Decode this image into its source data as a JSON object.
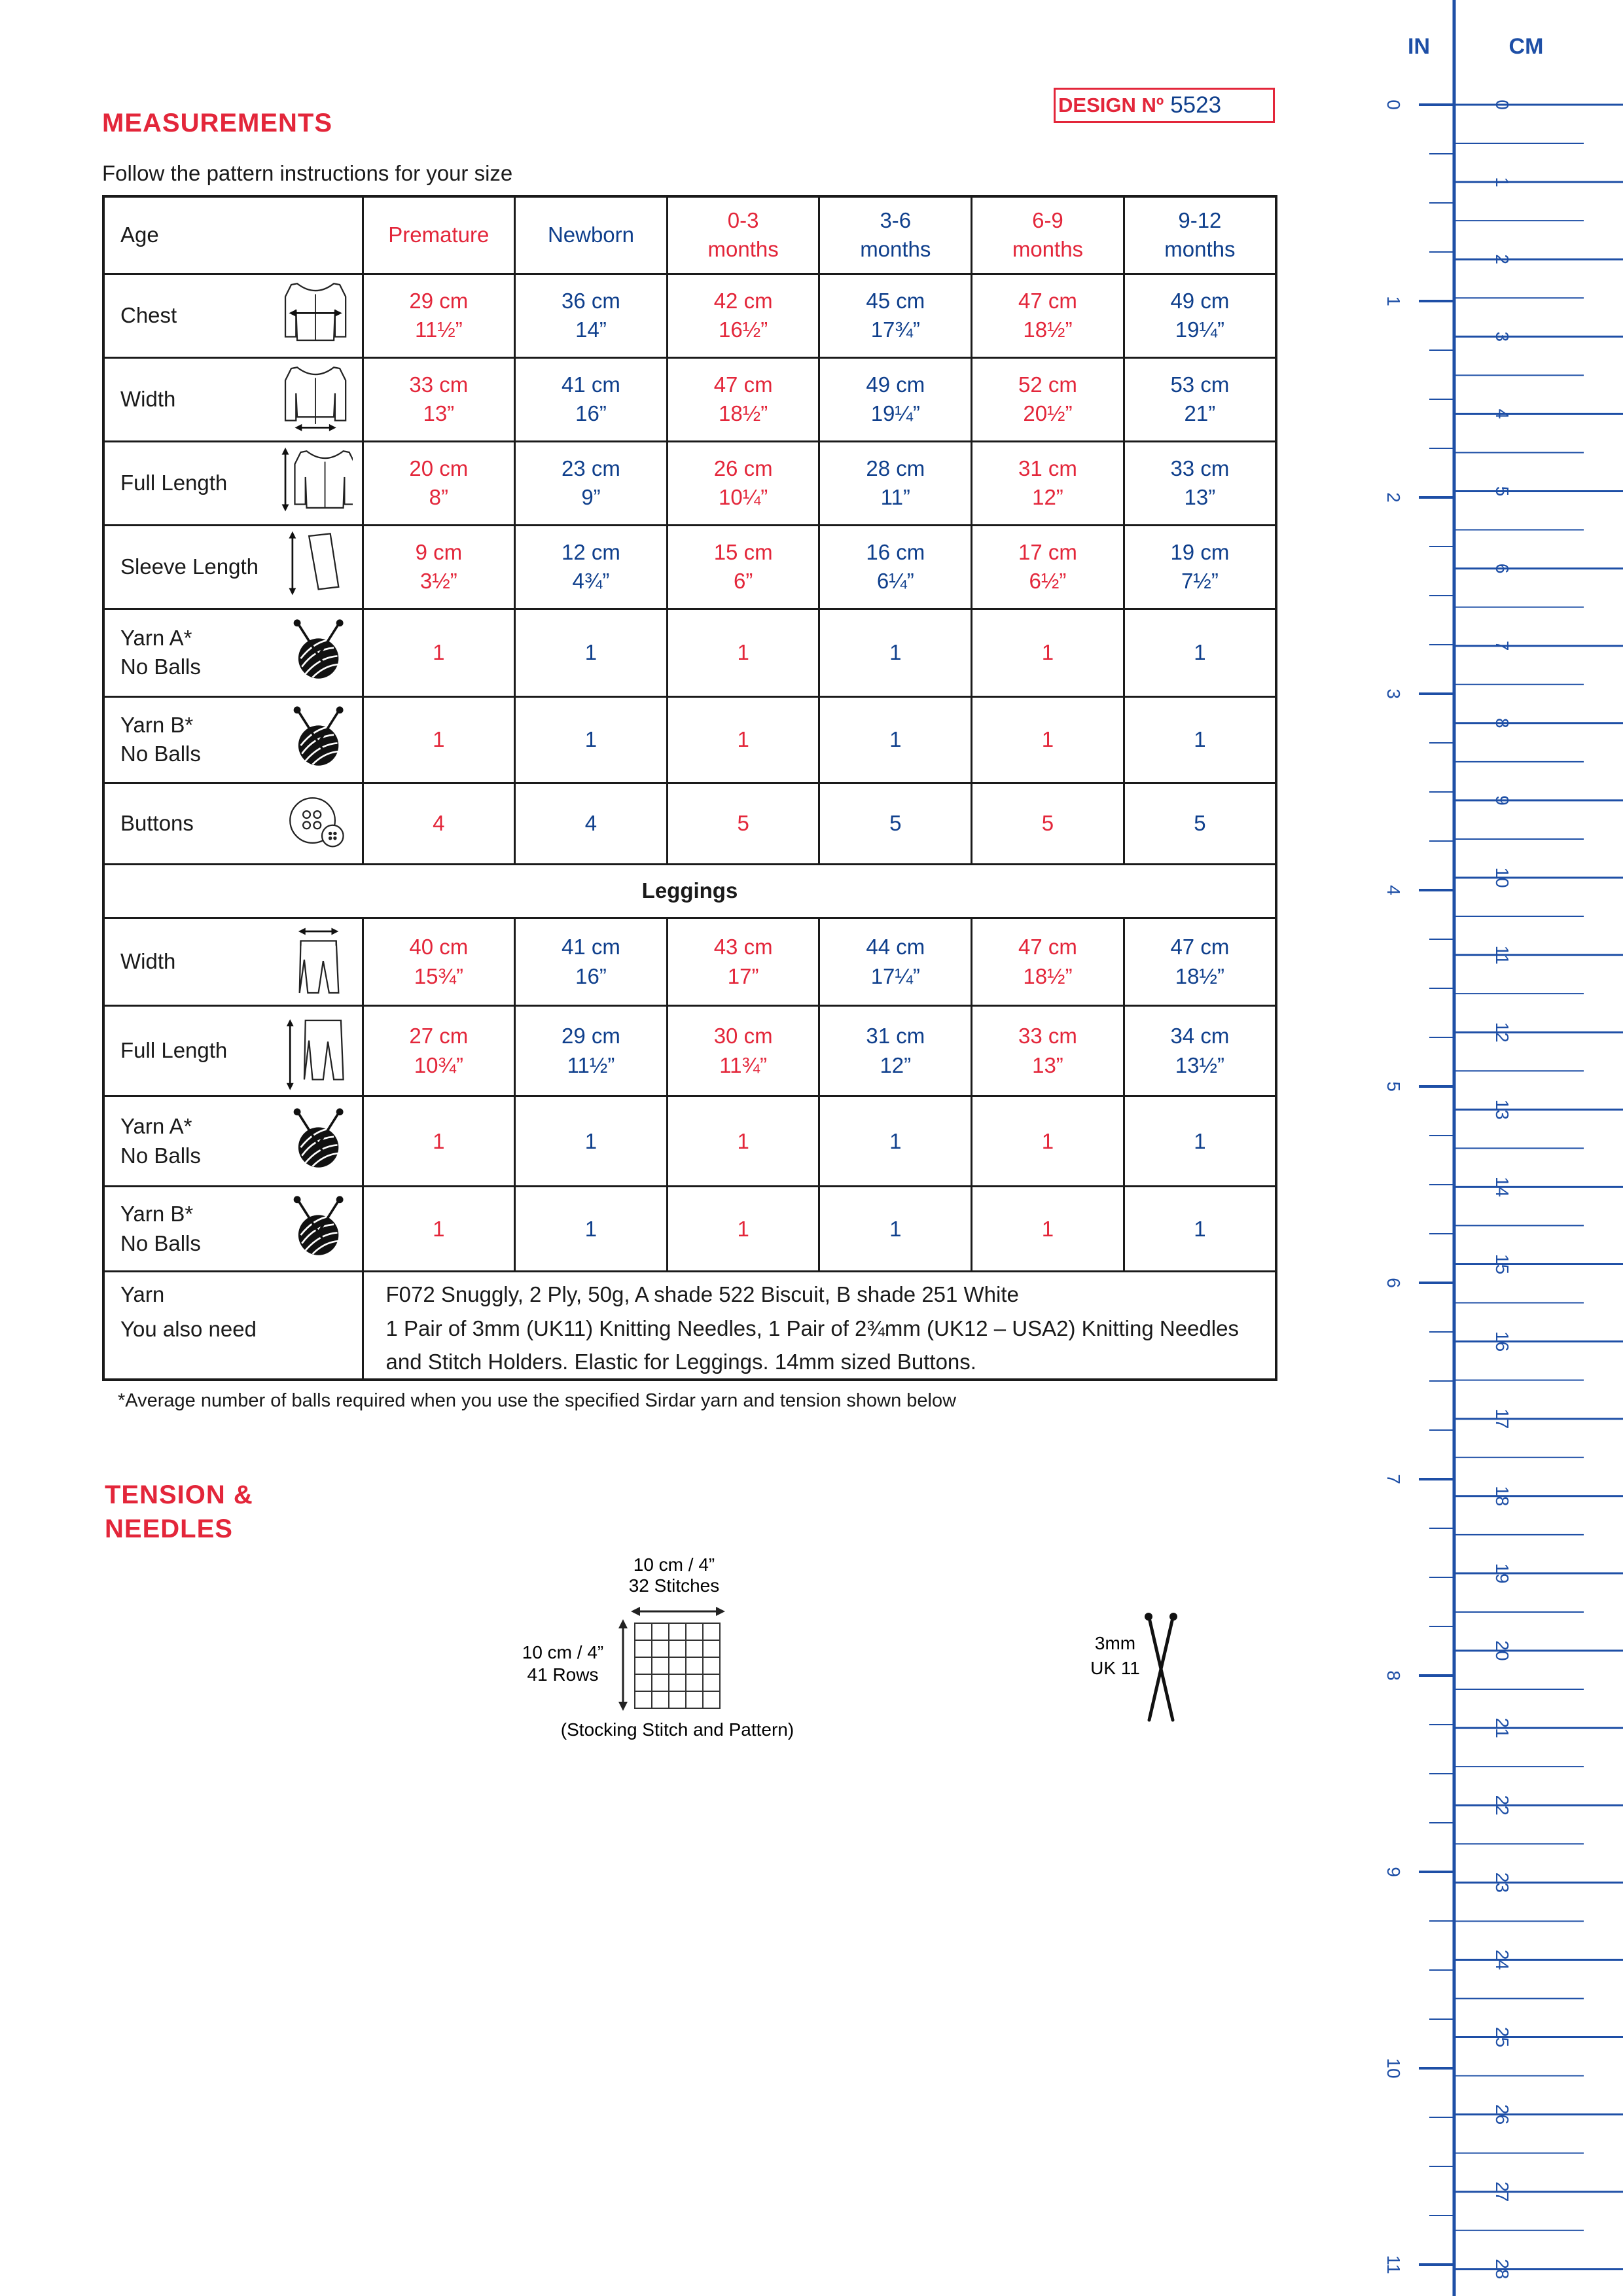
{
  "header": {
    "title": "MEASUREMENTS",
    "design_label": "DESIGN Nº",
    "design_number": "5523",
    "intro": "Follow the pattern instructions for your size"
  },
  "table": {
    "age_label": "Age",
    "sizes": [
      {
        "l1": "Premature",
        "l2": ""
      },
      {
        "l1": "Newborn",
        "l2": ""
      },
      {
        "l1": "0-3",
        "l2": "months"
      },
      {
        "l1": "3-6",
        "l2": "months"
      },
      {
        "l1": "6-9",
        "l2": "months"
      },
      {
        "l1": "9-12",
        "l2": "months"
      }
    ],
    "cardigan_rows": [
      {
        "label": "Chest",
        "label2": "",
        "icon": "cardigan-chest-icon",
        "cells": [
          [
            "29 cm",
            "11½”"
          ],
          [
            "36 cm",
            "14”"
          ],
          [
            "42 cm",
            "16½”"
          ],
          [
            "45 cm",
            "17¾”"
          ],
          [
            "47 cm",
            "18½”"
          ],
          [
            "49 cm",
            "19¼”"
          ]
        ]
      },
      {
        "label": "Width",
        "label2": "",
        "icon": "cardigan-width-icon",
        "cells": [
          [
            "33 cm",
            "13”"
          ],
          [
            "41 cm",
            "16”"
          ],
          [
            "47 cm",
            "18½”"
          ],
          [
            "49 cm",
            "19¼”"
          ],
          [
            "52 cm",
            "20½”"
          ],
          [
            "53 cm",
            "21”"
          ]
        ]
      },
      {
        "label": "Full Length",
        "label2": "",
        "icon": "cardigan-length-icon",
        "cells": [
          [
            "20 cm",
            "8”"
          ],
          [
            "23 cm",
            "9”"
          ],
          [
            "26 cm",
            "10¼”"
          ],
          [
            "28 cm",
            "11”"
          ],
          [
            "31 cm",
            "12”"
          ],
          [
            "33 cm",
            "13”"
          ]
        ]
      },
      {
        "label": "Sleeve Length",
        "label2": "",
        "icon": "sleeve-length-icon",
        "cells": [
          [
            "9 cm",
            "3½”"
          ],
          [
            "12 cm",
            "4¾”"
          ],
          [
            "15 cm",
            "6”"
          ],
          [
            "16 cm",
            "6¼”"
          ],
          [
            "17 cm",
            "6½”"
          ],
          [
            "19 cm",
            "7½”"
          ]
        ]
      },
      {
        "label": "Yarn A*",
        "label2": "No Balls",
        "icon": "yarn-ball-icon",
        "cells": [
          [
            "1",
            ""
          ],
          [
            "1",
            ""
          ],
          [
            "1",
            ""
          ],
          [
            "1",
            ""
          ],
          [
            "1",
            ""
          ],
          [
            "1",
            ""
          ]
        ]
      },
      {
        "label": "Yarn B*",
        "label2": "No Balls",
        "icon": "yarn-ball-icon",
        "cells": [
          [
            "1",
            ""
          ],
          [
            "1",
            ""
          ],
          [
            "1",
            ""
          ],
          [
            "1",
            ""
          ],
          [
            "1",
            ""
          ],
          [
            "1",
            ""
          ]
        ]
      },
      {
        "label": "Buttons",
        "label2": "",
        "icon": "button-icon",
        "cells": [
          [
            "4",
            ""
          ],
          [
            "4",
            ""
          ],
          [
            "5",
            ""
          ],
          [
            "5",
            ""
          ],
          [
            "5",
            ""
          ],
          [
            "5",
            ""
          ]
        ]
      }
    ],
    "section_label": "Leggings",
    "legging_rows": [
      {
        "label": "Width",
        "label2": "",
        "icon": "leggings-width-icon",
        "cells": [
          [
            "40 cm",
            "15¾”"
          ],
          [
            "41 cm",
            "16”"
          ],
          [
            "43 cm",
            "17”"
          ],
          [
            "44 cm",
            "17¼”"
          ],
          [
            "47 cm",
            "18½”"
          ],
          [
            "47 cm",
            "18½”"
          ]
        ]
      },
      {
        "label": "Full Length",
        "label2": "",
        "icon": "leggings-length-icon",
        "cells": [
          [
            "27 cm",
            "10¾”"
          ],
          [
            "29 cm",
            "11½”"
          ],
          [
            "30 cm",
            "11¾”"
          ],
          [
            "31 cm",
            "12”"
          ],
          [
            "33 cm",
            "13”"
          ],
          [
            "34 cm",
            "13½”"
          ]
        ]
      },
      {
        "label": "Yarn A*",
        "label2": "No Balls",
        "icon": "yarn-ball-icon",
        "cells": [
          [
            "1",
            ""
          ],
          [
            "1",
            ""
          ],
          [
            "1",
            ""
          ],
          [
            "1",
            ""
          ],
          [
            "1",
            ""
          ],
          [
            "1",
            ""
          ]
        ]
      },
      {
        "label": "Yarn B*",
        "label2": "No Balls",
        "icon": "yarn-ball-icon",
        "cells": [
          [
            "1",
            ""
          ],
          [
            "1",
            ""
          ],
          [
            "1",
            ""
          ],
          [
            "1",
            ""
          ],
          [
            "1",
            ""
          ],
          [
            "1",
            ""
          ]
        ]
      }
    ],
    "yarn_label": "Yarn",
    "yarn_text": "F072 Snuggly, 2 Ply, 50g, A shade 522 Biscuit, B shade 251 White",
    "need_label": "You also need",
    "need_text": "1 Pair of 3mm (UK11) Knitting Needles, 1 Pair of 2¾mm (UK12 – USA2) Knitting Needles and Stitch Holders. Elastic for Leggings. 14mm sized Buttons."
  },
  "footnote": "*Average number of balls required when you use the specified Sirdar yarn and tension shown below",
  "tension": {
    "title_line1": "TENSION &",
    "title_line2": "NEEDLES",
    "width_label": "10 cm / 4”",
    "stitches_label": "32 Stitches",
    "height_label": "10 cm / 4”",
    "rows_label": "41 Rows",
    "caption": "(Stocking Stitch and Pattern)",
    "needle_size": "3mm",
    "needle_uk": "UK 11"
  },
  "ruler": {
    "in_label": "IN",
    "cm_label": "CM",
    "inch_marks": [
      "0",
      "1",
      "2",
      "3",
      "4",
      "5",
      "6",
      "7",
      "8",
      "9",
      "10",
      "11"
    ],
    "cm_marks": [
      "0",
      "1",
      "2",
      "3",
      "4",
      "5",
      "6",
      "7",
      "8",
      "9",
      "10",
      "11",
      "12",
      "13",
      "14",
      "15",
      "16",
      "17",
      "18",
      "19",
      "20",
      "21",
      "22",
      "23",
      "24",
      "25",
      "26",
      "27",
      "28"
    ]
  },
  "colors": {
    "red": "#e3263a",
    "blue": "#0f3f8c",
    "ruler": "#1e4fa6"
  }
}
